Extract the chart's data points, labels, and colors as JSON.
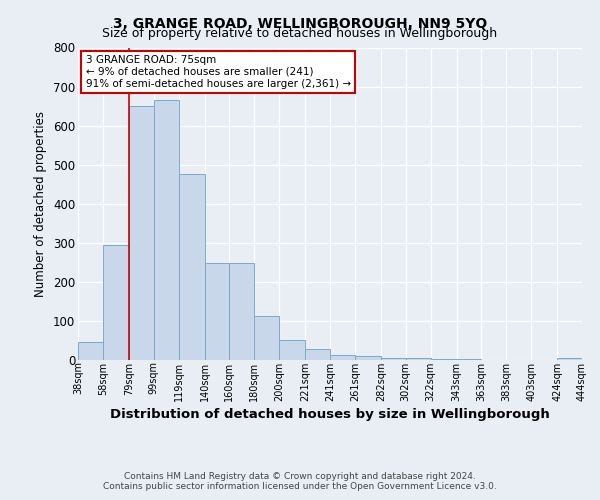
{
  "title": "3, GRANGE ROAD, WELLINGBOROUGH, NN9 5YQ",
  "subtitle": "Size of property relative to detached houses in Wellingborough",
  "xlabel": "Distribution of detached houses by size in Wellingborough",
  "ylabel": "Number of detached properties",
  "footnote": "Contains HM Land Registry data © Crown copyright and database right 2024.\nContains public sector information licensed under the Open Government Licence v3.0.",
  "bin_edges": [
    38,
    58,
    79,
    99,
    119,
    140,
    160,
    180,
    200,
    221,
    241,
    261,
    282,
    302,
    322,
    343,
    363,
    383,
    403,
    424,
    444
  ],
  "bin_labels": [
    "38sqm",
    "58sqm",
    "79sqm",
    "99sqm",
    "119sqm",
    "140sqm",
    "160sqm",
    "180sqm",
    "200sqm",
    "221sqm",
    "241sqm",
    "261sqm",
    "282sqm",
    "302sqm",
    "322sqm",
    "343sqm",
    "363sqm",
    "383sqm",
    "403sqm",
    "424sqm",
    "444sqm"
  ],
  "bar_heights": [
    47,
    295,
    650,
    665,
    475,
    248,
    248,
    113,
    50,
    27,
    13,
    10,
    6,
    4,
    2,
    2,
    1,
    1,
    1,
    6
  ],
  "bar_color": "#c8d8ea",
  "bar_edgecolor": "#7aaacb",
  "property_line_x": 79,
  "annotation_line1": "3 GRANGE ROAD: 75sqm",
  "annotation_line2": "← 9% of detached houses are smaller (241)",
  "annotation_line3": "91% of semi-detached houses are larger (2,361) →",
  "annotation_box_color": "#ffffff",
  "annotation_border_color": "#cc0000",
  "ylim": [
    0,
    800
  ],
  "background_color": "#e8eef4",
  "grid_color": "#ffffff",
  "yticks": [
    0,
    100,
    200,
    300,
    400,
    500,
    600,
    700,
    800
  ],
  "title_fontsize": 10,
  "subtitle_fontsize": 9,
  "ylabel_fontsize": 8.5,
  "xlabel_fontsize": 9.5,
  "footnote_fontsize": 6.5
}
